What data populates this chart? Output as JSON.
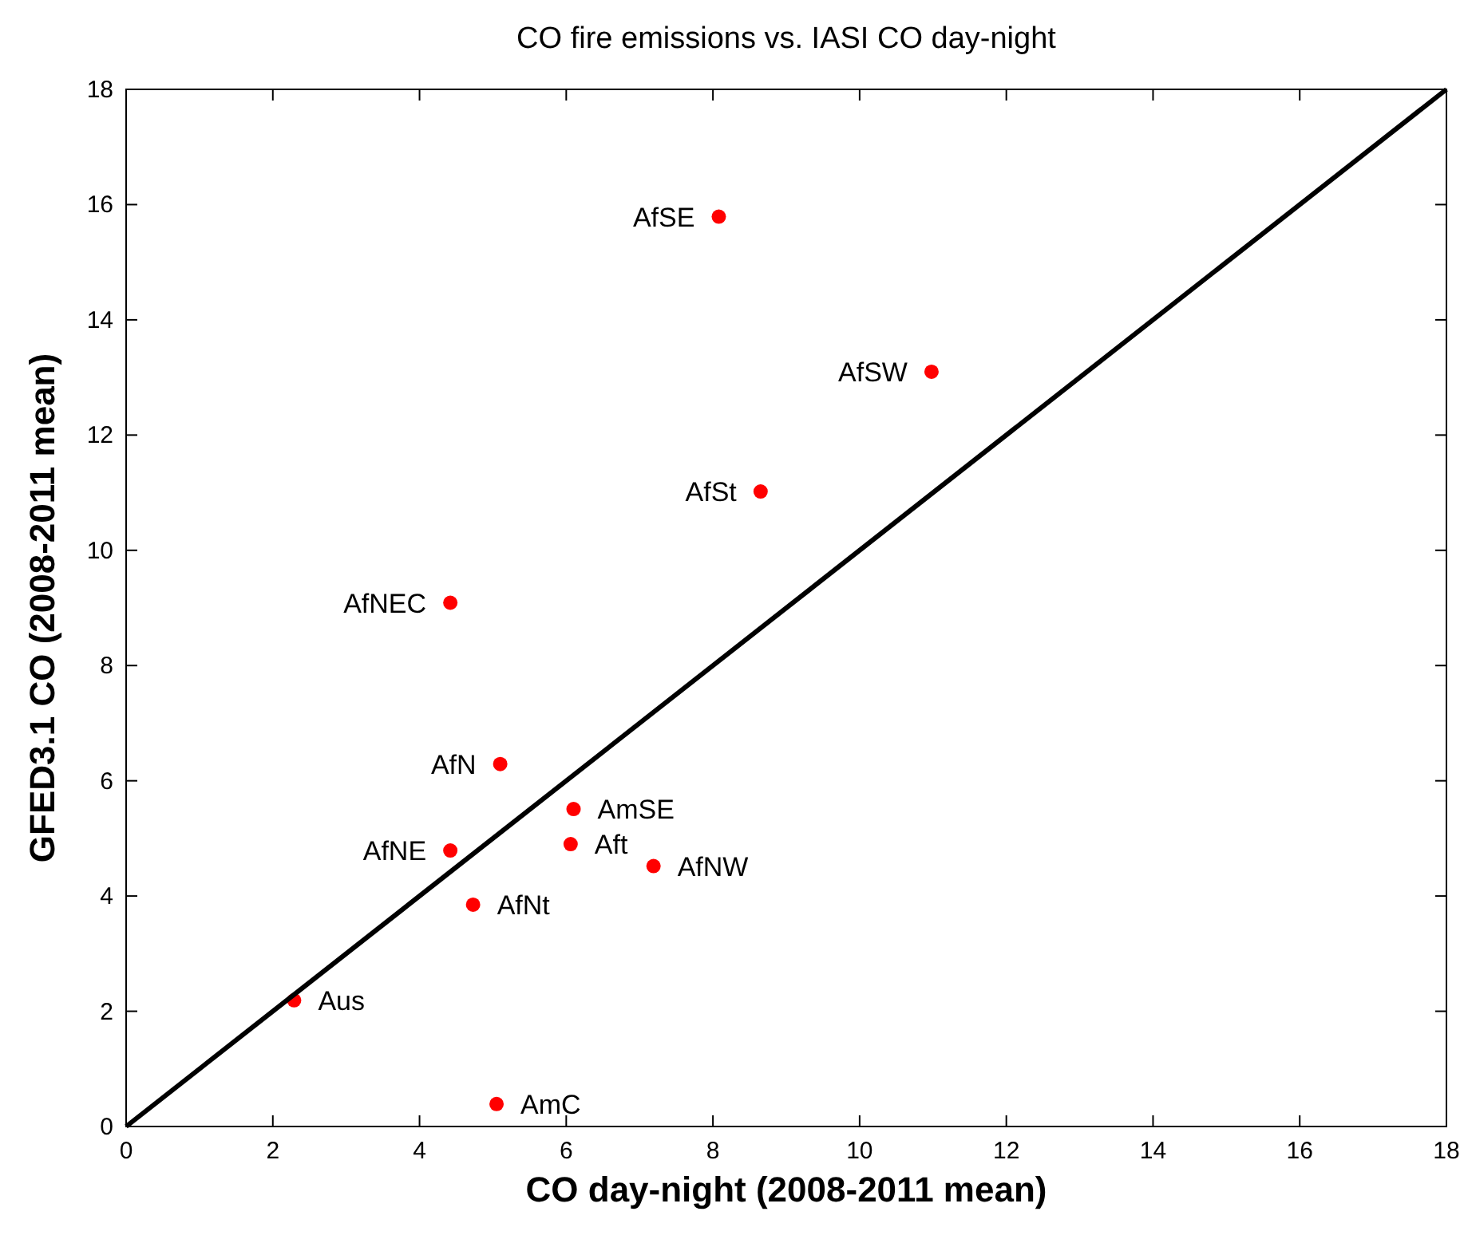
{
  "chart_data": {
    "type": "scatter",
    "title": "CO fire emissions vs. IASI CO day-night",
    "xlabel": "CO day-night (2008-2011 mean)",
    "ylabel": "GFED3.1 CO (2008-2011 mean)",
    "xlim": [
      0,
      18
    ],
    "ylim": [
      0,
      18
    ],
    "xticks": [
      0,
      2,
      4,
      6,
      8,
      10,
      12,
      14,
      16,
      18
    ],
    "yticks": [
      0,
      2,
      4,
      6,
      8,
      10,
      12,
      14,
      16,
      18
    ],
    "grid": false,
    "series": [
      {
        "color": "#ff0000",
        "marker": "circle",
        "x": [
          8.08,
          10.98,
          8.65,
          4.42,
          5.1,
          6.1,
          6.06,
          7.19,
          4.42,
          4.73,
          2.29,
          5.05
        ],
        "values": [
          15.79,
          13.1,
          11.02,
          9.09,
          6.29,
          5.51,
          4.9,
          4.52,
          4.79,
          3.85,
          2.19,
          0.39
        ]
      },
      {
        "type": "line",
        "color": "#000000",
        "x": [
          0,
          18
        ],
        "values": [
          0,
          18
        ],
        "line_style": "solid"
      }
    ],
    "annotations": [
      {
        "text": "AfSE",
        "x": 8.08,
        "y": 15.79
      },
      {
        "text": "AfSW",
        "x": 10.98,
        "y": 13.1
      },
      {
        "text": "AfSt",
        "x": 8.65,
        "y": 11.02
      },
      {
        "text": "AfNEC",
        "x": 4.42,
        "y": 9.09
      },
      {
        "text": "AfN",
        "x": 5.1,
        "y": 6.29
      },
      {
        "text": "AmSE",
        "x": 6.1,
        "y": 5.51
      },
      {
        "text": "Aft",
        "x": 6.06,
        "y": 4.9
      },
      {
        "text": "AfNW",
        "x": 7.19,
        "y": 4.52
      },
      {
        "text": "AfNE",
        "x": 4.42,
        "y": 4.79
      },
      {
        "text": "AfNt",
        "x": 4.73,
        "y": 3.85
      },
      {
        "text": "Aus",
        "x": 2.29,
        "y": 2.19
      },
      {
        "text": "AmC",
        "x": 5.05,
        "y": 0.39
      }
    ]
  }
}
